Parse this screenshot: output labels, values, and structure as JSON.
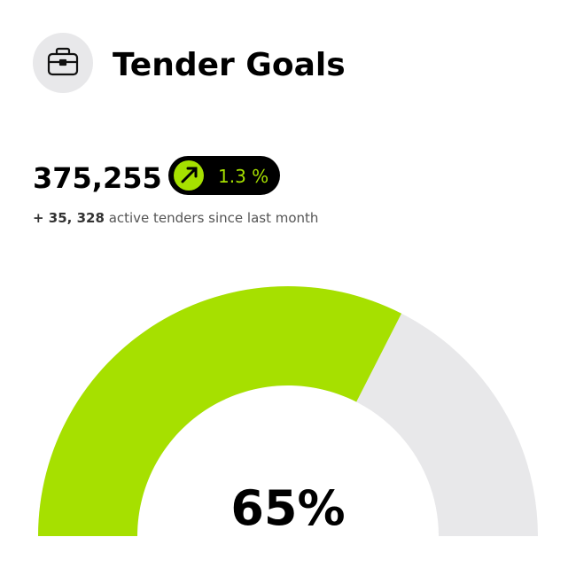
{
  "header": {
    "title": "Tender Goals"
  },
  "stat": {
    "value": "375,255",
    "change": "1.3 %"
  },
  "subtitle": {
    "prefix": "+ 35, 328",
    "text": "active tenders since last month"
  },
  "gauge": {
    "value": 65,
    "value_label": "65%",
    "lim": [
      0,
      100
    ],
    "color": "#a6e000",
    "track_color": "#e8e8ea"
  }
}
